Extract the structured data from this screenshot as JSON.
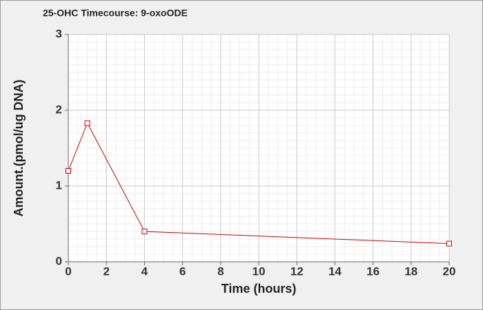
{
  "chart_data": {
    "type": "line",
    "title": "25-OHC Timecourse: 9-oxoODE",
    "x_label": "Time (hours)",
    "y_label": "Amount.(pmol/ug DNA)",
    "x": [
      0,
      1,
      4,
      20
    ],
    "series": [
      {
        "color": "#cc0000",
        "values": [
          1.2,
          1.83,
          0.4,
          0.24
        ]
      }
    ],
    "xlim": [
      0,
      20
    ],
    "xticks": [
      0,
      2,
      4,
      6,
      8,
      10,
      12,
      14,
      16,
      18,
      20
    ],
    "ylim": [
      0,
      3
    ],
    "yticks": [
      0,
      1,
      2,
      3
    ],
    "grid": true
  }
}
